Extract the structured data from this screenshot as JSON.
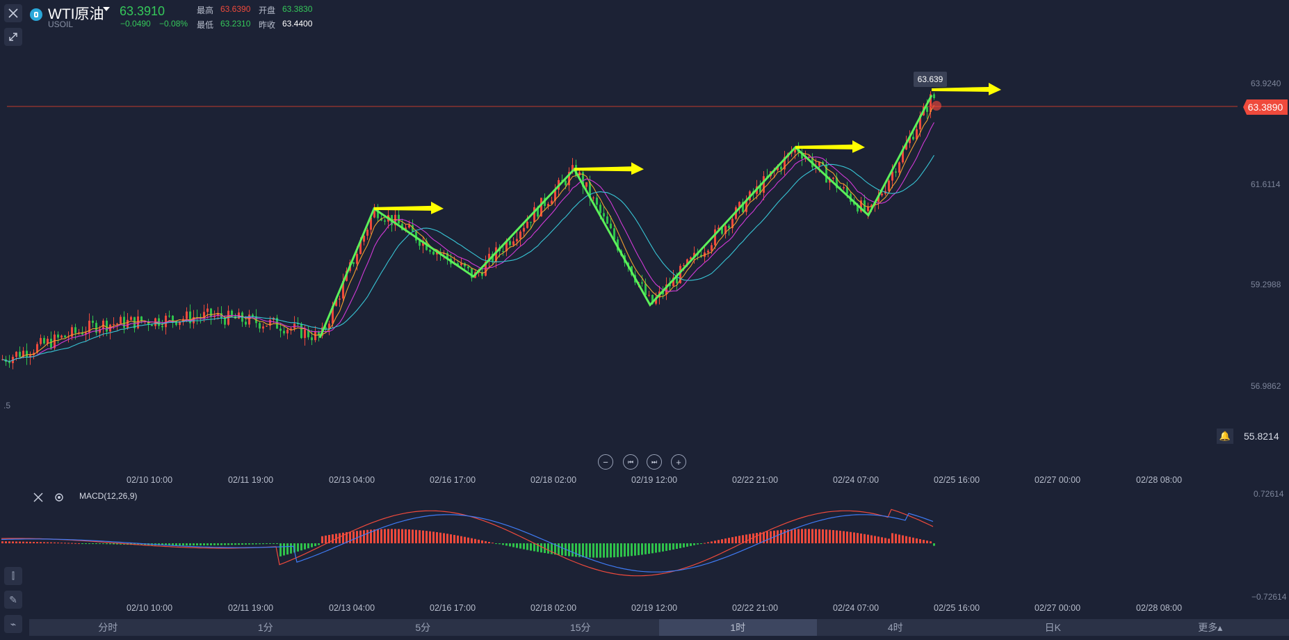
{
  "header": {
    "title": "WTI原油",
    "symbol": "USOIL",
    "price": "63.3910",
    "change": "−0.0490",
    "change_pct": "−0.08%",
    "high_label": "最高",
    "high": "63.6390",
    "open_label": "开盘",
    "open": "63.3830",
    "low_label": "最低",
    "low": "63.2310",
    "prev_label": "昨收",
    "prev": "63.4400"
  },
  "colors": {
    "bg": "#1c2235",
    "up": "#ef4a3c",
    "down": "#2fc24b",
    "zigzag": "#5cf05a",
    "arrow": "#ffff00"
  },
  "price_axis": [
    "63.9240",
    "61.6114",
    "59.2988",
    "56.9862",
    "55.8214"
  ],
  "current_price_tag": "63.3890",
  "high_tooltip": "63.639",
  "left_edge_label": ".5",
  "macd": {
    "label": "MACD(12,26,9)",
    "top": "0.72614",
    "bottom": "−0.72614"
  },
  "dates_main": [
    "02/10 10:00",
    "02/11 19:00",
    "02/13 04:00",
    "02/16 17:00",
    "02/18 02:00",
    "02/19 12:00",
    "02/22 21:00",
    "02/24 07:00",
    "02/25 16:00",
    "02/27 00:00",
    "02/28 08:00"
  ],
  "dates_macd": [
    "02/10 10:00",
    "02/11 19:00",
    "02/13 04:00",
    "02/16 17:00",
    "02/18 02:00",
    "02/19 12:00",
    "02/22 21:00",
    "02/24 07:00",
    "02/25 16:00",
    "02/27 00:00",
    "02/28 08:00"
  ],
  "tabs": [
    "分时",
    "1分",
    "5分",
    "15分",
    "1时",
    "4时",
    "日K",
    "更多▴"
  ],
  "active_tab": "1时",
  "chart_data": {
    "type": "candlestick",
    "x_range": [
      "02/10 10:00",
      "02/28 08:00"
    ],
    "y_range": [
      55.8214,
      63.924
    ],
    "zigzag": [
      58.1,
      61.05,
      59.5,
      61.95,
      58.85,
      62.45,
      60.9,
      63.639
    ],
    "last_price": 63.389
  }
}
